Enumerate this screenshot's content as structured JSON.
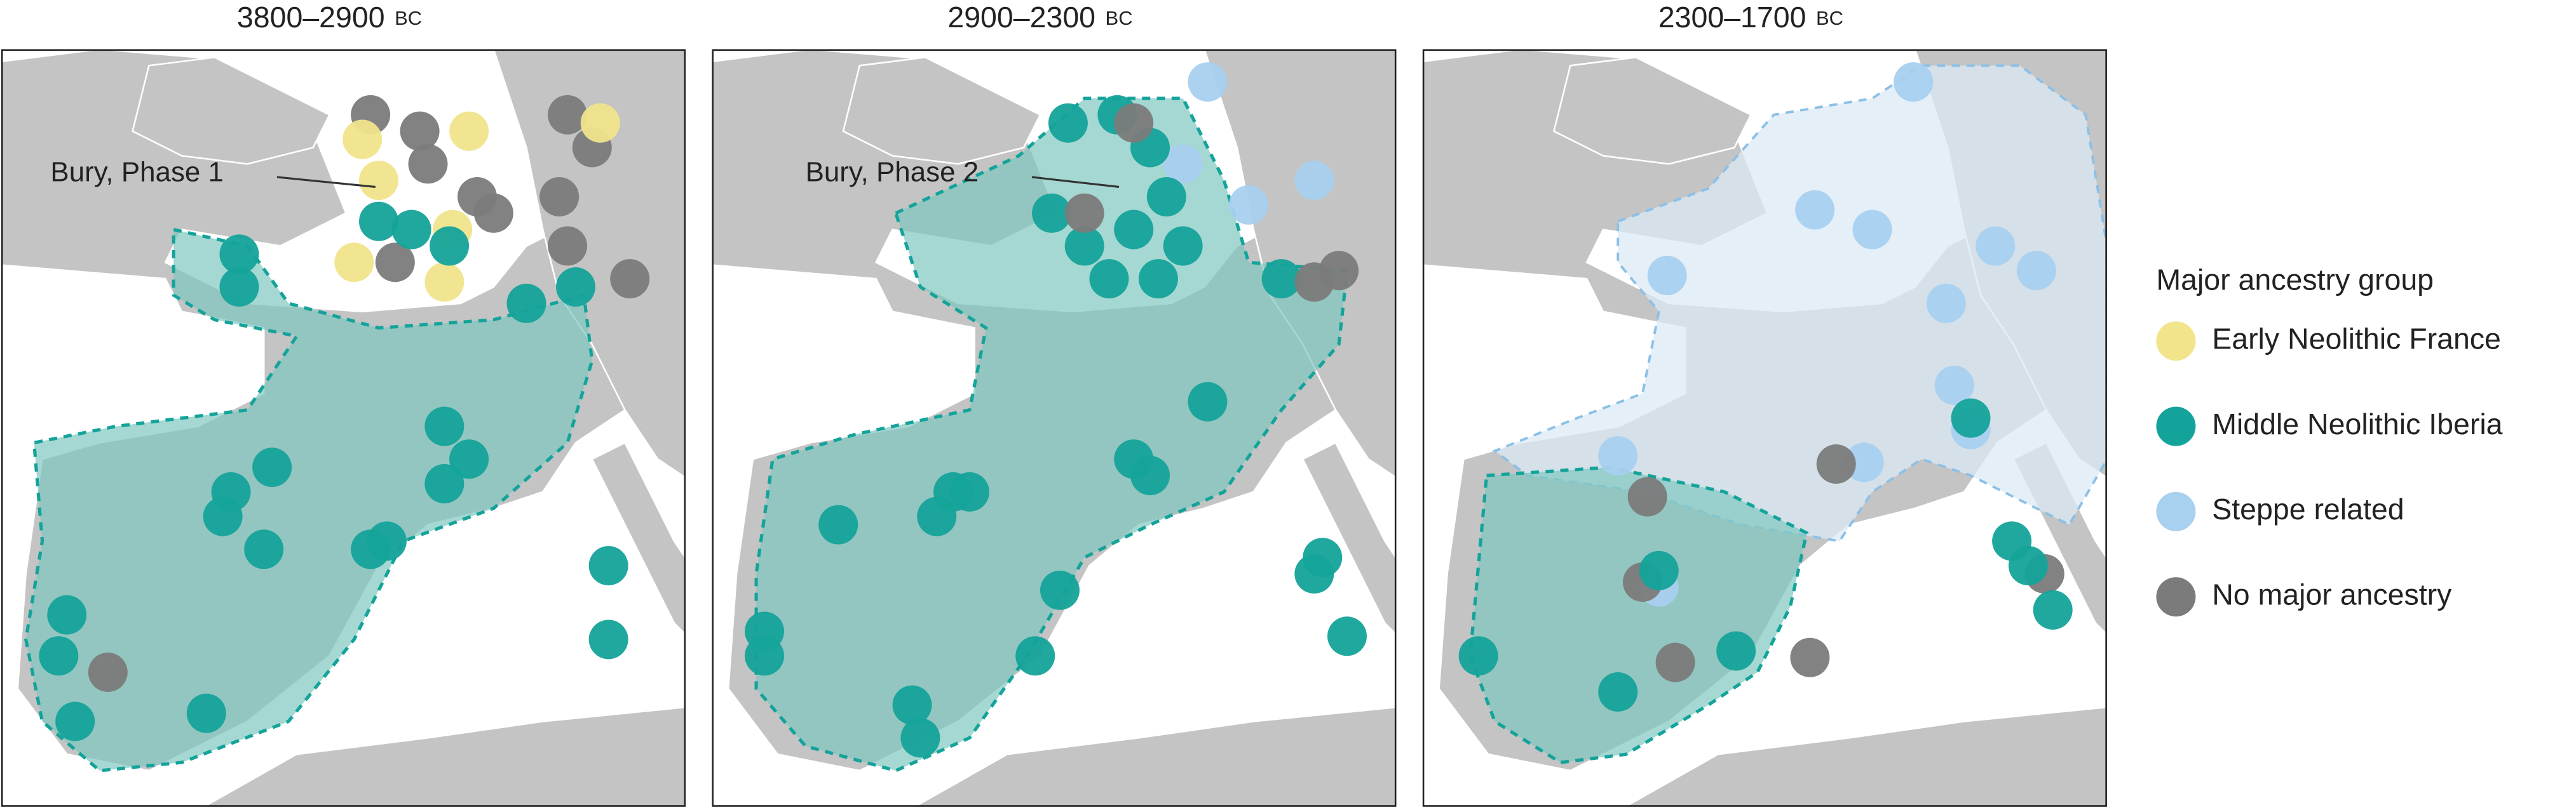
{
  "panels": [
    {
      "period": "3800–2900",
      "era": "BC",
      "annotation": "Bury, Phase 1"
    },
    {
      "period": "2900–2300",
      "era": "BC",
      "annotation": "Bury, Phase 2"
    },
    {
      "period": "2300–1700",
      "era": "BC"
    }
  ],
  "legend": {
    "title": "Major ancestry group",
    "items": [
      {
        "label": "Early Neolithic France",
        "color": "#f1e48b"
      },
      {
        "label": "Middle Neolithic Iberia",
        "color": "#14a39a"
      },
      {
        "label": "Steppe related",
        "color": "#a8d0ef"
      },
      {
        "label": "No major ancestry",
        "color": "#7b7b7b"
      }
    ]
  }
}
